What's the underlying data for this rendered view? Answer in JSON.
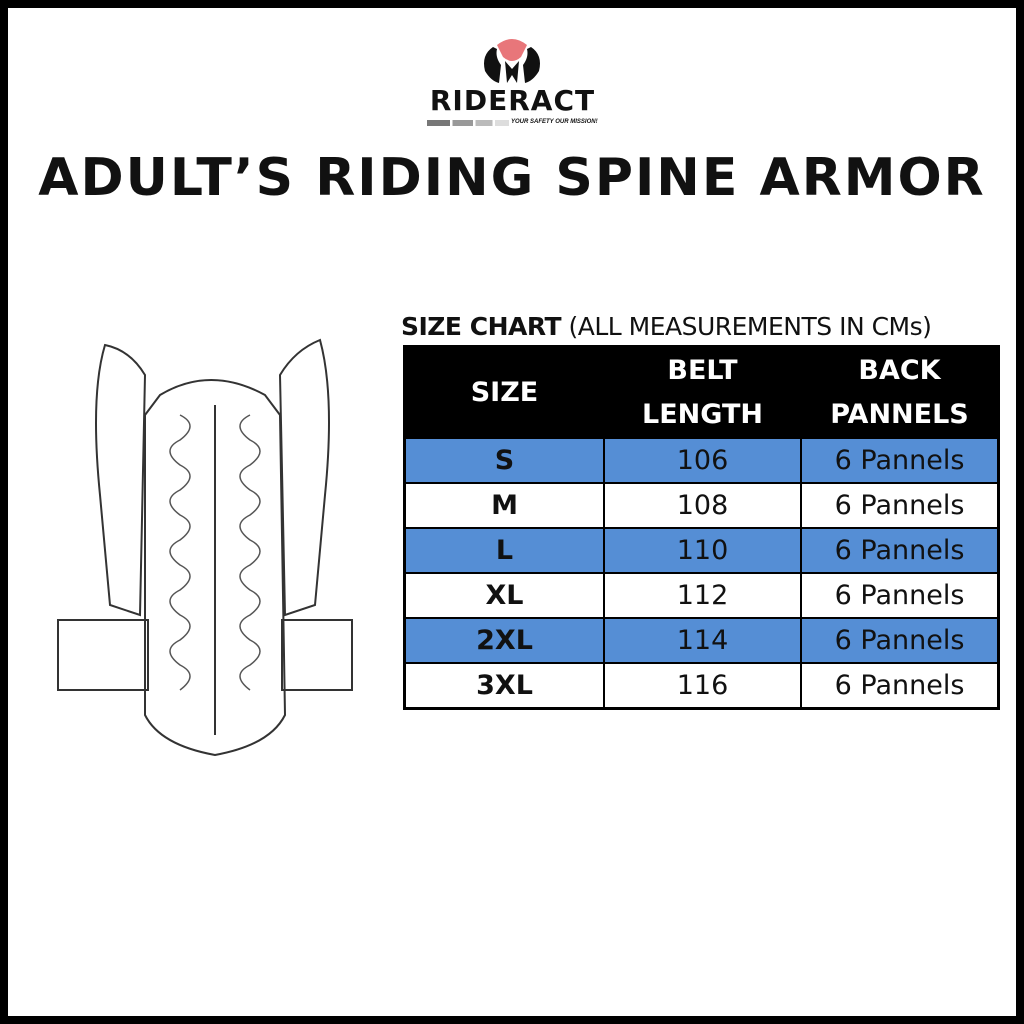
{
  "brand": {
    "name": "RIDERACT",
    "tagline": "YOUR SAFETY OUR MISSION!"
  },
  "title": "ADULT’S RIDING SPINE ARMOR",
  "caption": {
    "bold": "SIZE CHART",
    "rest": " (ALL MEASUREMENTS IN CMs)"
  },
  "table": {
    "headers": [
      [
        "SIZE",
        ""
      ],
      [
        "BELT",
        "LENGTH"
      ],
      [
        "BACK",
        "PANNELS"
      ]
    ],
    "rows": [
      {
        "size": "S",
        "belt": "106",
        "panels": "6 Pannels"
      },
      {
        "size": "M",
        "belt": "108",
        "panels": "6 Pannels"
      },
      {
        "size": "L",
        "belt": "110",
        "panels": "6 Pannels"
      },
      {
        "size": "XL",
        "belt": "112",
        "panels": "6 Pannels"
      },
      {
        "size": "2XL",
        "belt": "114",
        "panels": "6 Pannels"
      },
      {
        "size": "3XL",
        "belt": "116",
        "panels": "6 Pannels"
      }
    ]
  },
  "colors": {
    "row_highlight": "#558ED5",
    "header_bg": "#000000",
    "logo_accent": "#E8767A"
  }
}
